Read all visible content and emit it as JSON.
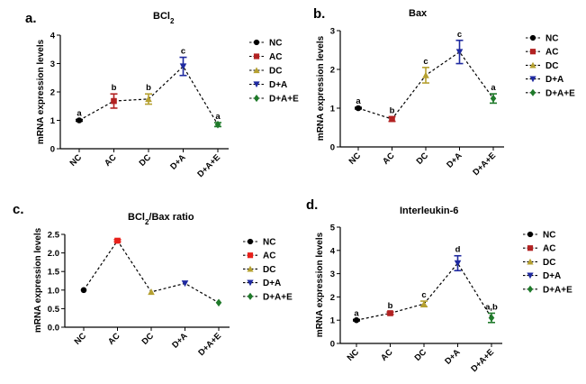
{
  "figure": {
    "panels": [
      "a.",
      "b.",
      "c.",
      "d."
    ]
  },
  "chart_data": [
    {
      "type": "line",
      "panel": "a.",
      "title_main": "BCl",
      "title_sub": "2",
      "title_rest": "",
      "ylabel": "mRNA expression levels",
      "ylim": [
        0,
        4
      ],
      "yticks": [
        "0",
        "1",
        "2",
        "3",
        "4"
      ],
      "categories": [
        "NC",
        "AC",
        "DC",
        "D+A",
        "D+A+E"
      ],
      "values": [
        1.0,
        1.68,
        1.75,
        2.9,
        0.85
      ],
      "errors": [
        0.03,
        0.25,
        0.18,
        0.32,
        0.07
      ],
      "annotations": [
        "a",
        "b",
        "b",
        "c",
        "a"
      ],
      "legend": [
        "NC",
        "AC",
        "DC",
        "D+A",
        "D+A+E"
      ],
      "marker_colors": [
        "#000000",
        "#b22222",
        "#b5a030",
        "#1f2aa0",
        "#1f7a2a"
      ],
      "markers": [
        "circle",
        "square",
        "triangle-up",
        "triangle-down",
        "diamond"
      ]
    },
    {
      "type": "line",
      "panel": "b.",
      "title_main": "Bax",
      "title_sub": "",
      "title_rest": "",
      "ylabel": "mRNA expression levels",
      "ylim": [
        0,
        3
      ],
      "yticks": [
        "0",
        "1",
        "2",
        "3"
      ],
      "categories": [
        "NC",
        "AC",
        "DC",
        "D+A",
        "D+A+E"
      ],
      "values": [
        1.0,
        0.72,
        1.85,
        2.45,
        1.25
      ],
      "errors": [
        0.02,
        0.06,
        0.2,
        0.3,
        0.12
      ],
      "annotations": [
        "a",
        "b",
        "c",
        "c",
        "a"
      ],
      "legend": [
        "NC",
        "AC",
        "DC",
        "D+A",
        "D+A+E"
      ],
      "marker_colors": [
        "#000000",
        "#b22222",
        "#b5a030",
        "#1f2aa0",
        "#1f7a2a"
      ],
      "markers": [
        "circle",
        "square",
        "triangle-up",
        "triangle-down",
        "diamond"
      ]
    },
    {
      "type": "line",
      "panel": "c.",
      "title_main": "BCl",
      "title_sub": "2",
      "title_rest": "/Bax ratio",
      "ylabel": "mRNA expression levels",
      "ylim": [
        0,
        2.5
      ],
      "yticks": [
        "0.0",
        "0.5",
        "1.0",
        "1.5",
        "2.0",
        "2.5"
      ],
      "categories": [
        "NC",
        "AC",
        "DC",
        "D+A",
        "D+A+E"
      ],
      "values": [
        1.0,
        2.33,
        0.95,
        1.18,
        0.66
      ],
      "errors": [
        0,
        0.03,
        0,
        0,
        0
      ],
      "annotations": [
        "",
        "",
        "",
        "",
        ""
      ],
      "legend": [
        "NC",
        "AC",
        "DC",
        "D+A",
        "D+A+E"
      ],
      "marker_colors": [
        "#000000",
        "#e8201a",
        "#b5a030",
        "#1f2aa0",
        "#1f7a2a"
      ],
      "markers": [
        "circle",
        "square",
        "triangle-up",
        "triangle-down",
        "diamond"
      ]
    },
    {
      "type": "line",
      "panel": "d.",
      "title_main": "Interleukin-6",
      "title_sub": "",
      "title_rest": "",
      "ylabel": "mRNA expression levels",
      "ylim": [
        0,
        5
      ],
      "yticks": [
        "0",
        "1",
        "2",
        "3",
        "4",
        "5"
      ],
      "categories": [
        "NC",
        "AC",
        "DC",
        "D+A",
        "D+A+E"
      ],
      "values": [
        1.0,
        1.3,
        1.7,
        3.45,
        1.1
      ],
      "errors": [
        0.03,
        0.05,
        0.12,
        0.32,
        0.2
      ],
      "annotations": [
        "a",
        "b",
        "c",
        "d",
        "a,b"
      ],
      "legend": [
        "NC",
        "AC",
        "DC",
        "D+A",
        "D+A+E"
      ],
      "marker_colors": [
        "#000000",
        "#b22222",
        "#b5a030",
        "#1f2aa0",
        "#1f7a2a"
      ],
      "markers": [
        "circle",
        "square",
        "triangle-up",
        "triangle-down",
        "diamond"
      ]
    }
  ]
}
